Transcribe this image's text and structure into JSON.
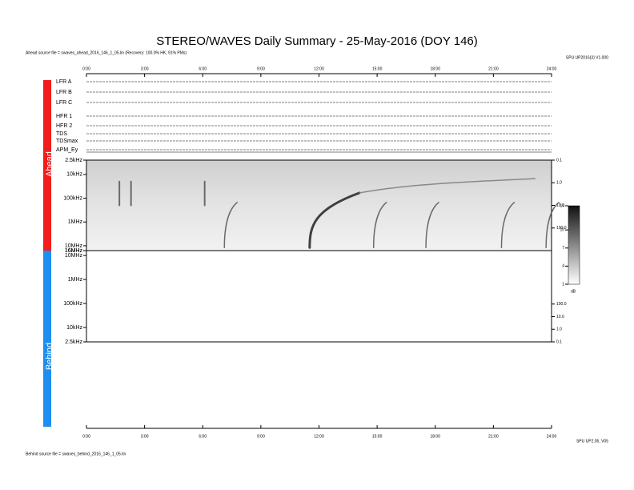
{
  "chart_data": [
    {
      "type": "spectrogram",
      "title": "STEREO/WAVES Daily Summary - 25-May-2016 (DOY 146)",
      "panel": "Ahead",
      "source": "Ahead source file = swaves_ahead_2016_146_1_05.lin (Recovery: 100.0% HK, 91% PMs)",
      "version": "SPU UP2016(3) V1.000",
      "channels": [
        "LFR A",
        "LFR B",
        "LFR C",
        "HFR 1",
        "HFR 2",
        "TDS",
        "TDSmax",
        "APM_Ey"
      ],
      "xlim": [
        0,
        24
      ],
      "xticks": [
        {
          "value": 0,
          "label": "0:00"
        },
        {
          "value": 3,
          "label": "3:00"
        },
        {
          "value": 6,
          "label": "6:00"
        },
        {
          "value": 9,
          "label": "9:00"
        },
        {
          "value": 12,
          "label": "12:00"
        },
        {
          "value": 15,
          "label": "15:00"
        },
        {
          "value": 18,
          "label": "18:00"
        },
        {
          "value": 21,
          "label": "21:00"
        },
        {
          "value": 24,
          "label": "24:00"
        }
      ],
      "log_y": true,
      "ylim": [
        2500,
        16000000
      ],
      "yticks": [
        {
          "value": 2500,
          "label": "2.5kHz"
        },
        {
          "value": 10000,
          "label": "10kHz"
        },
        {
          "value": 100000,
          "label": "100kHz"
        },
        {
          "value": 1000000,
          "label": "1MHz"
        },
        {
          "value": 10000000,
          "label": "10MHz"
        },
        {
          "value": 16000000,
          "label": "16MHz"
        }
      ],
      "y2lim": [
        0.1,
        1000
      ],
      "y2ticks": [
        0.1,
        {
          "value": 1,
          "label": "1.0"
        },
        {
          "value": 10,
          "label": "10.0"
        },
        {
          "value": 100,
          "label": "100.0"
        }
      ],
      "bursts": [
        1.7,
        2.3,
        6.1,
        7.2,
        11.6,
        14.9,
        17.6,
        21.5,
        23.8
      ],
      "colorbar": {
        "lim": [
          1,
          14
        ],
        "ticks": [
          1,
          4,
          7,
          10,
          14
        ],
        "label": "dB"
      }
    },
    {
      "type": "spectrogram",
      "panel": "Behind",
      "source": "Behind source file = swaves_behind_2016_146_1_05.lin",
      "version": "SPU UP2.05, V05",
      "xlim": [
        0,
        24
      ],
      "xticks": [
        {
          "value": 0,
          "label": "0:00"
        },
        {
          "value": 3,
          "label": "3:00"
        },
        {
          "value": 6,
          "label": "6:00"
        },
        {
          "value": 9,
          "label": "9:00"
        },
        {
          "value": 12,
          "label": "12:00"
        },
        {
          "value": 15,
          "label": "15:00"
        },
        {
          "value": 18,
          "label": "18:00"
        },
        {
          "value": 21,
          "label": "21:00"
        },
        {
          "value": 24,
          "label": "24:00"
        }
      ],
      "log_y": true,
      "ylim": [
        2500,
        16000000
      ],
      "yticks": [
        {
          "value": 2500,
          "label": "2.5kHz"
        },
        {
          "value": 10000,
          "label": "10kHz"
        },
        {
          "value": 100000,
          "label": "100kHz"
        },
        {
          "value": 1000000,
          "label": "1MHz"
        },
        {
          "value": 10000000,
          "label": "10MHz"
        },
        {
          "value": 16000000,
          "label": "16MHz"
        }
      ],
      "y2lim": [
        0.1,
        1000
      ],
      "y2ticks": [
        0.1,
        {
          "value": 1,
          "label": "1.0"
        },
        {
          "value": 10,
          "label": "10.0"
        },
        {
          "value": 100,
          "label": "100.0"
        }
      ]
    }
  ]
}
